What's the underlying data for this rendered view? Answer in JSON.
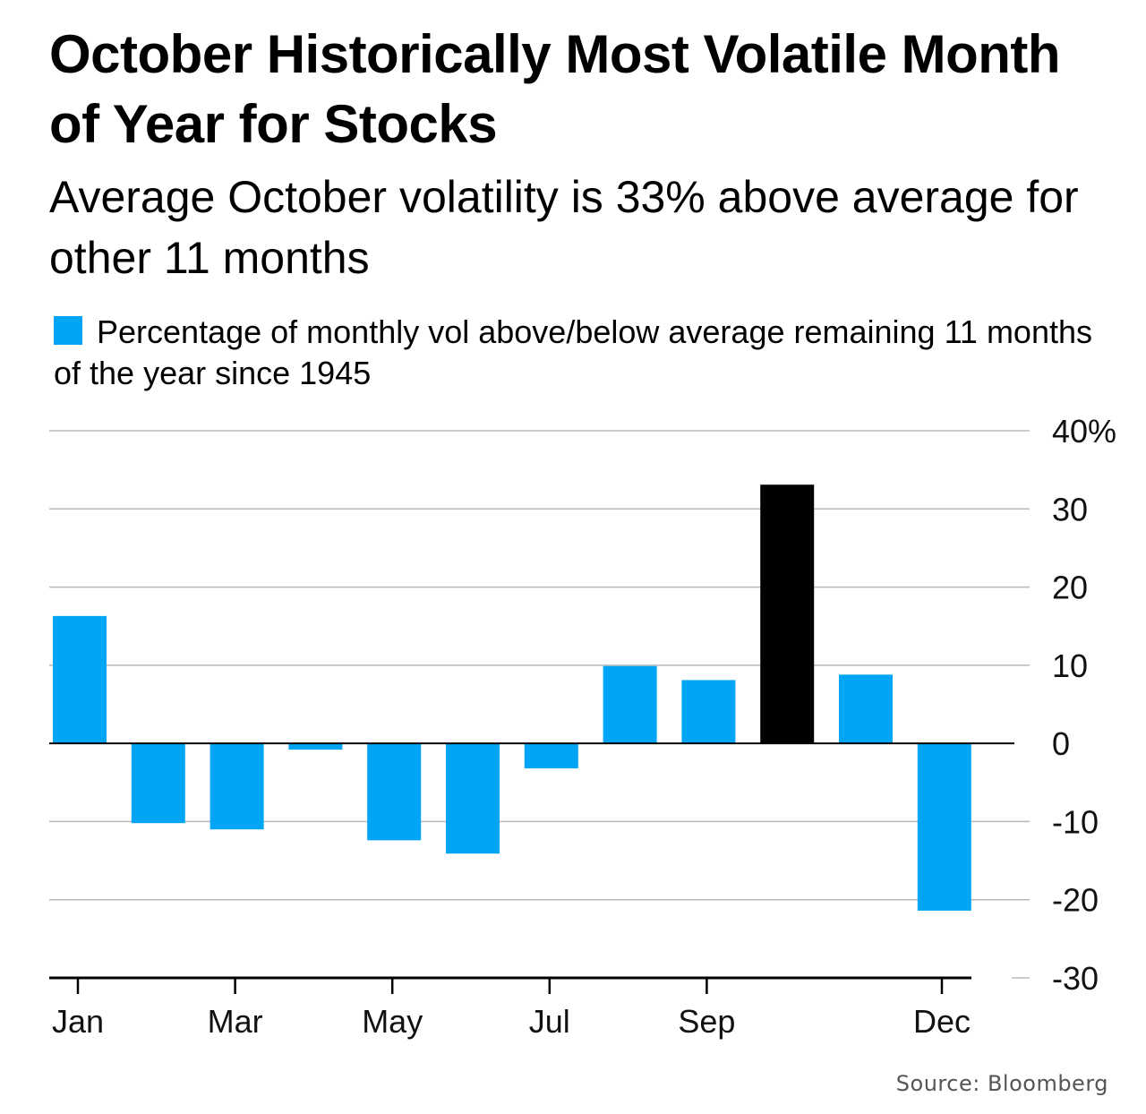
{
  "title": "October Historically Most Volatile Month of Year for Stocks",
  "subtitle": "Average October volatility is 33% above average for other 11 months",
  "legend_label": "Percentage of monthly vol above/below average remaining 11 months of the year since 1945",
  "source": "Source: Bloomberg",
  "colors": {
    "bar": "#00a6f5",
    "highlight": "#000000",
    "grid": "#b8b8b8",
    "axis": "#000000"
  },
  "chart_data": {
    "type": "bar",
    "categories": [
      "Jan",
      "Feb",
      "Mar",
      "Apr",
      "May",
      "Jun",
      "Jul",
      "Aug",
      "Sep",
      "Oct",
      "Nov",
      "Dec"
    ],
    "values": [
      16.3,
      -10.2,
      -11.0,
      -0.8,
      -12.4,
      -14.1,
      -3.2,
      9.9,
      8.1,
      33.1,
      8.8,
      -21.4
    ],
    "highlight_category": "Oct",
    "x_tick_labels": [
      "Jan",
      "Mar",
      "May",
      "Jul",
      "Sep",
      "Dec"
    ],
    "y_ticks": [
      40,
      30,
      20,
      10,
      0,
      -10,
      -20,
      -30
    ],
    "y_tick_labels": [
      "40%",
      "30",
      "20",
      "10",
      "0",
      "-10",
      "-20",
      "-30"
    ],
    "ylim": [
      -30,
      40
    ],
    "grid": true,
    "y_axis_side": "right",
    "series": [
      {
        "name": "Percentage of monthly vol above/below average remaining 11 months of the year since 1945"
      }
    ]
  }
}
